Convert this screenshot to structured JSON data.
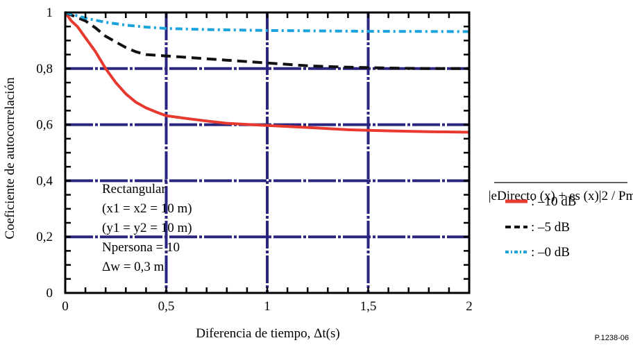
{
  "chart_data": {
    "type": "line",
    "xlabel": "Diferencia de tiempo, Δt(s)",
    "ylabel": "Coeficiente de autocorrelación",
    "xlim": [
      0,
      2
    ],
    "ylim": [
      0,
      1
    ],
    "x_ticks": [
      {
        "value": 0,
        "label": "0"
      },
      {
        "value": 0.5,
        "label": "0,5"
      },
      {
        "value": 1,
        "label": "1"
      },
      {
        "value": 1.5,
        "label": "1,5"
      },
      {
        "value": 2,
        "label": "2"
      }
    ],
    "y_ticks": [
      {
        "value": 0,
        "label": "0"
      },
      {
        "value": 0.2,
        "label": "0,2"
      },
      {
        "value": 0.4,
        "label": "0,4"
      },
      {
        "value": 0.6,
        "label": "0,6"
      },
      {
        "value": 0.8,
        "label": "0,8"
      },
      {
        "value": 1,
        "label": "1"
      }
    ],
    "grid": true,
    "series": [
      {
        "name": ": –10 dB",
        "color": "#e8392f",
        "style": "solid",
        "points": [
          [
            0,
            1
          ],
          [
            0.03,
            0.97
          ],
          [
            0.06,
            0.95
          ],
          [
            0.1,
            0.91
          ],
          [
            0.15,
            0.86
          ],
          [
            0.2,
            0.8
          ],
          [
            0.25,
            0.75
          ],
          [
            0.3,
            0.71
          ],
          [
            0.35,
            0.68
          ],
          [
            0.4,
            0.66
          ],
          [
            0.45,
            0.645
          ],
          [
            0.5,
            0.632
          ],
          [
            0.6,
            0.622
          ],
          [
            0.7,
            0.613
          ],
          [
            0.8,
            0.605
          ],
          [
            1.0,
            0.597
          ],
          [
            1.2,
            0.59
          ],
          [
            1.4,
            0.582
          ],
          [
            1.6,
            0.578
          ],
          [
            1.8,
            0.575
          ],
          [
            2.0,
            0.573
          ]
        ]
      },
      {
        "name": ": –5 dB",
        "color": "#111111",
        "style": "dashed",
        "points": [
          [
            0,
            1
          ],
          [
            0.05,
            0.985
          ],
          [
            0.1,
            0.97
          ],
          [
            0.15,
            0.945
          ],
          [
            0.2,
            0.915
          ],
          [
            0.25,
            0.895
          ],
          [
            0.3,
            0.875
          ],
          [
            0.35,
            0.86
          ],
          [
            0.4,
            0.85
          ],
          [
            0.5,
            0.845
          ],
          [
            0.6,
            0.84
          ],
          [
            0.7,
            0.835
          ],
          [
            0.8,
            0.83
          ],
          [
            0.9,
            0.825
          ],
          [
            1.0,
            0.82
          ],
          [
            1.2,
            0.81
          ],
          [
            1.4,
            0.805
          ],
          [
            1.6,
            0.802
          ],
          [
            1.8,
            0.8
          ],
          [
            2.0,
            0.8
          ]
        ]
      },
      {
        "name": ": –0 dB",
        "color": "#1aa3dd",
        "style": "dashed",
        "points": [
          [
            0,
            1
          ],
          [
            0.05,
            0.99
          ],
          [
            0.1,
            0.98
          ],
          [
            0.2,
            0.965
          ],
          [
            0.3,
            0.955
          ],
          [
            0.4,
            0.948
          ],
          [
            0.5,
            0.943
          ],
          [
            0.7,
            0.939
          ],
          [
            1.0,
            0.936
          ],
          [
            1.5,
            0.933
          ],
          [
            2.0,
            0.932
          ]
        ]
      }
    ],
    "annotations": [
      "Rectangular",
      "(x1 = x2 = 10 m)",
      "(y1 = y2 = 10 m)",
      "Npersona = 10",
      "Δw = 0,3 m"
    ],
    "formula": "|eDirecto (x) + es (x)|2 / Pm",
    "figure_ref": "P.1238-06"
  }
}
